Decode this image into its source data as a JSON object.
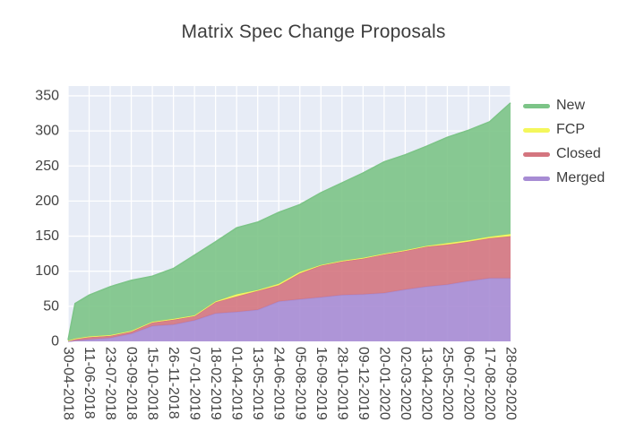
{
  "title": "Matrix Spec Change Proposals",
  "chart_data": {
    "type": "area",
    "stacked": true,
    "title": "Matrix Spec Change Proposals",
    "xlabel": "",
    "ylabel": "",
    "grid": true,
    "plot_bg": "#e7ecf6",
    "grid_color": "#ffffff",
    "legend_position": "right",
    "yticks": [
      0,
      50,
      100,
      150,
      200,
      250,
      300,
      350
    ],
    "ylim": [
      0,
      364
    ],
    "x": [
      "30-04-2018",
      "14-05-2018",
      "11-06-2018",
      "23-07-2018",
      "03-09-2018",
      "15-10-2018",
      "26-11-2018",
      "07-01-2019",
      "18-02-2019",
      "01-04-2019",
      "13-05-2019",
      "24-06-2019",
      "05-08-2019",
      "16-09-2019",
      "28-10-2019",
      "09-12-2019",
      "20-01-2020",
      "02-03-2020",
      "13-04-2020",
      "25-05-2020",
      "06-07-2020",
      "17-08-2020",
      "28-09-2020"
    ],
    "xticks": [
      "30-04-2018",
      "11-06-2018",
      "23-07-2018",
      "03-09-2018",
      "15-10-2018",
      "26-11-2018",
      "07-01-2019",
      "18-02-2019",
      "01-04-2019",
      "13-05-2019",
      "24-06-2019",
      "05-08-2019",
      "16-09-2019",
      "28-10-2019",
      "09-12-2019",
      "20-01-2020",
      "02-03-2020",
      "13-04-2020",
      "25-05-2020",
      "06-07-2020",
      "17-08-2020",
      "28-09-2020"
    ],
    "stack_order_note": "series listed bottom-to-top; legend displays reverse order",
    "series": [
      {
        "name": "Merged",
        "color": "#a78cd4",
        "values": [
          0,
          1,
          3,
          5,
          11,
          22,
          24,
          30,
          40,
          42,
          45,
          57,
          60,
          63,
          66,
          67,
          69,
          74,
          78,
          81,
          86,
          90,
          90
        ]
      },
      {
        "name": "Closed",
        "color": "#d4757f",
        "values": [
          1,
          3,
          3,
          3,
          3,
          5,
          7,
          6,
          16,
          22,
          27,
          23,
          37,
          45,
          48,
          51,
          55,
          55,
          57,
          57,
          56,
          57,
          60
        ]
      },
      {
        "name": "FCP",
        "color": "#f4f75c",
        "values": [
          0,
          0,
          1,
          1,
          1,
          1,
          1,
          1,
          1,
          3,
          1,
          2,
          2,
          1,
          1,
          1,
          1,
          1,
          1,
          2,
          2,
          2,
          3
        ]
      },
      {
        "name": "New",
        "color": "#7cc487",
        "values": [
          1,
          50,
          59,
          69,
          72,
          65,
          72,
          86,
          85,
          95,
          97,
          102,
          96,
          103,
          111,
          121,
          131,
          136,
          142,
          151,
          157,
          164,
          187
        ]
      }
    ]
  }
}
